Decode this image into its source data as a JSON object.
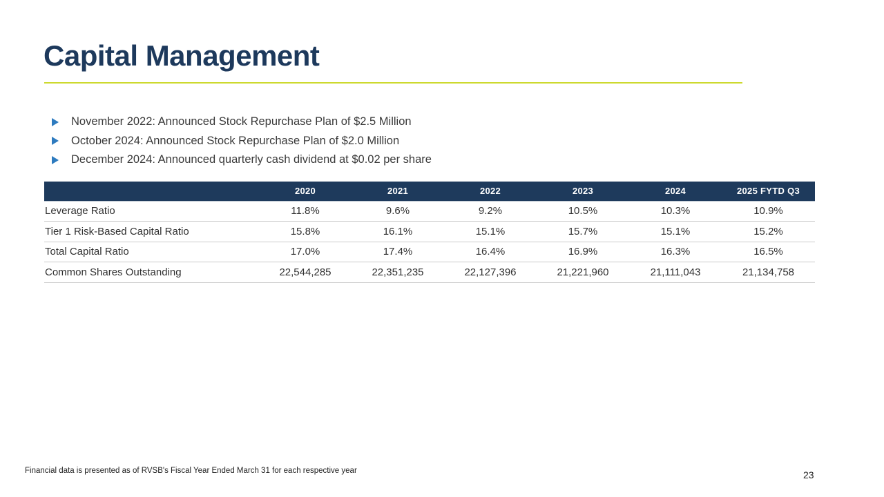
{
  "slide": {
    "title": "Capital Management",
    "footnote": "Financial data is presented as of RVSB's Fiscal Year Ended March 31 for each respective year",
    "page_number": "23"
  },
  "bullets": [
    "November 2022: Announced Stock Repurchase Plan of $2.5 Million",
    "October 2024: Announced Stock Repurchase Plan of $2.0 Million",
    "December 2024: Announced quarterly cash dividend at $0.02 per share"
  ],
  "table": {
    "columns": [
      "",
      "2020",
      "2021",
      "2022",
      "2023",
      "2024",
      "2025 FYTD Q3"
    ],
    "rows": [
      {
        "label": "Leverage Ratio",
        "values": [
          "11.8%",
          "9.6%",
          "9.2%",
          "10.5%",
          "10.3%",
          "10.9%"
        ]
      },
      {
        "label": "Tier 1 Risk-Based Capital Ratio",
        "values": [
          "15.8%",
          "16.1%",
          "15.1%",
          "15.7%",
          "15.1%",
          "15.2%"
        ]
      },
      {
        "label": "Total Capital Ratio",
        "values": [
          "17.0%",
          "17.4%",
          "16.4%",
          "16.9%",
          "16.3%",
          "16.5%"
        ]
      },
      {
        "label": "Common Shares Outstanding",
        "values": [
          "22,544,285",
          "22,351,235",
          "22,127,396",
          "21,221,960",
          "21,111,043",
          "21,134,758"
        ]
      }
    ]
  },
  "colors": {
    "accent_navy": "#1e3a5c",
    "accent_lime": "#cdd92f",
    "bullet_blue": "#2e7bbf",
    "body_text": "#3a3a3a"
  }
}
